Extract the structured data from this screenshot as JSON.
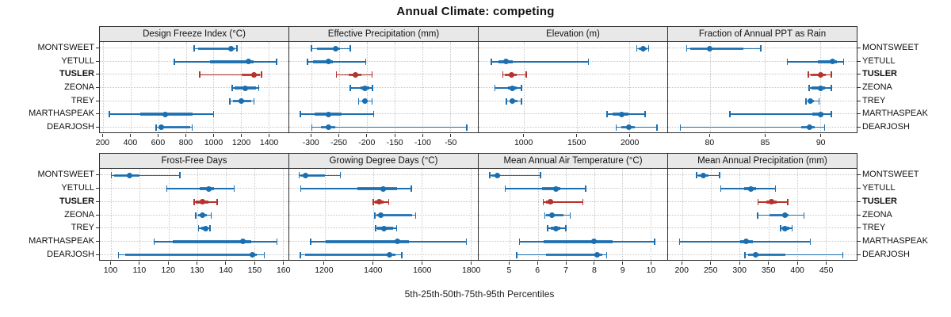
{
  "title": "Annual Climate: competing",
  "footer": "5th-25th-50th-75th-95th Percentiles",
  "sites": [
    "MONTSWEET",
    "YETULL",
    "TUSLER",
    "ZEONA",
    "TREY",
    "MARTHASPEAK",
    "DEARJOSH"
  ],
  "highlight_site": "TUSLER",
  "colors": {
    "series": "#1b6fb0",
    "highlight": "#b5332b",
    "panel_header_bg": "#e8e8e8",
    "border": "#2e2e2e",
    "grid": "#c7c7c7"
  },
  "chart_data": {
    "type": "dot-whisker-trellis",
    "percentiles": [
      5,
      25,
      50,
      75,
      95
    ],
    "legend_note": "whisker = 5th-95th, thick bar = 25th-75th, dot = median",
    "grid": "dotted",
    "panels": [
      {
        "title": "Design Freeze Index (°C)",
        "band": 0,
        "xlim": [
          175,
          1545
        ],
        "ticks": [
          200,
          400,
          600,
          800,
          1000,
          1200,
          1400
        ],
        "values": [
          [
            860,
            890,
            1130,
            1155,
            1170
          ],
          [
            715,
            975,
            1255,
            1290,
            1460
          ],
          [
            900,
            1205,
            1295,
            1335,
            1350
          ],
          [
            1135,
            1155,
            1230,
            1310,
            1330
          ],
          [
            1120,
            1140,
            1205,
            1275,
            1295
          ],
          [
            245,
            470,
            650,
            850,
            1000
          ],
          [
            585,
            600,
            622,
            833,
            847
          ]
        ]
      },
      {
        "title": "Effective Precipitation (mm)",
        "band": 0,
        "xlim": [
          -340,
          0
        ],
        "ticks": [
          -300,
          -250,
          -200,
          -150,
          -100,
          -50
        ],
        "values": [
          [
            -300,
            -290,
            -257,
            -249,
            -230
          ],
          [
            -307,
            -297,
            -270,
            -261,
            -202
          ],
          [
            -255,
            -233,
            -220,
            -210,
            -191
          ],
          [
            -230,
            -212,
            -203,
            -196,
            -190
          ],
          [
            -215,
            -208,
            -204,
            -198,
            -191
          ],
          [
            -320,
            -295,
            -270,
            -246,
            -188
          ],
          [
            -299,
            -283,
            -269,
            -257,
            -20
          ]
        ]
      },
      {
        "title": "Elevation (m)",
        "band": 0,
        "xlim": [
          570,
          2360
        ],
        "ticks": [
          1000,
          1500,
          2000
        ],
        "values": [
          [
            2070,
            2090,
            2133,
            2163,
            2185
          ],
          [
            690,
            758,
            832,
            895,
            1610
          ],
          [
            800,
            820,
            885,
            930,
            1020
          ],
          [
            725,
            845,
            890,
            930,
            977
          ],
          [
            832,
            860,
            890,
            935,
            977
          ],
          [
            1788,
            1838,
            1925,
            1988,
            2150
          ],
          [
            1875,
            1925,
            1995,
            2050,
            2263
          ]
        ]
      },
      {
        "title": "Fraction of Annual PPT as Rain",
        "band": 0,
        "xlim": [
          76.2,
          93.3
        ],
        "ticks": [
          80,
          85,
          90
        ],
        "values": [
          [
            77.9,
            78.2,
            80.0,
            83.0,
            84.6
          ],
          [
            87.0,
            89.8,
            91.1,
            91.5,
            92.1
          ],
          [
            88.9,
            89.1,
            90.0,
            90.5,
            91.0
          ],
          [
            89.0,
            89.2,
            90.0,
            90.4,
            91.0
          ],
          [
            88.7,
            88.9,
            89.1,
            89.4,
            89.9
          ],
          [
            81.8,
            89.3,
            90.0,
            90.3,
            91.0
          ],
          [
            77.3,
            88.3,
            89.0,
            89.5,
            90.4
          ]
        ]
      },
      {
        "title": "Frost-Free Days",
        "band": 1,
        "xlim": [
          96,
          162
        ],
        "ticks": [
          100,
          110,
          120,
          130,
          140,
          150,
          160
        ],
        "values": [
          [
            100,
            101,
            106.5,
            110,
            124
          ],
          [
            119.5,
            131,
            134,
            136,
            143
          ],
          [
            129,
            129.5,
            132,
            134,
            137
          ],
          [
            129.5,
            130.5,
            132,
            133.5,
            135
          ],
          [
            130.5,
            131.5,
            133,
            133.5,
            134.5
          ],
          [
            115,
            121.5,
            146,
            149,
            158
          ],
          [
            102.5,
            105,
            149.5,
            151,
            153.5
          ]
        ]
      },
      {
        "title": "Growing Degree Days (°C)",
        "band": 1,
        "xlim": [
          1055,
          1830
        ],
        "ticks": [
          1200,
          1400,
          1600,
          1800
        ],
        "values": [
          [
            1095,
            1100,
            1122,
            1200,
            1265
          ],
          [
            1102,
            1336,
            1441,
            1497,
            1556
          ],
          [
            1400,
            1406,
            1424,
            1442,
            1464
          ],
          [
            1406,
            1412,
            1432,
            1560,
            1574
          ],
          [
            1410,
            1416,
            1443,
            1481,
            1497
          ],
          [
            1143,
            1205,
            1500,
            1546,
            1782
          ],
          [
            1100,
            1120,
            1467,
            1492,
            1517
          ]
        ]
      },
      {
        "title": "Mean Annual Air Temperature (°C)",
        "band": 1,
        "xlim": [
          3.9,
          10.6
        ],
        "ticks": [
          5,
          6,
          7,
          8,
          9,
          10
        ],
        "values": [
          [
            4.3,
            4.35,
            4.55,
            4.65,
            6.1
          ],
          [
            4.85,
            6.15,
            6.65,
            6.8,
            7.7
          ],
          [
            6.2,
            6.3,
            6.45,
            6.55,
            7.6
          ],
          [
            6.25,
            6.3,
            6.5,
            6.9,
            7.15
          ],
          [
            6.35,
            6.45,
            6.65,
            6.8,
            7.0
          ],
          [
            5.35,
            6.2,
            8.0,
            8.65,
            10.15
          ],
          [
            5.25,
            6.3,
            8.1,
            8.3,
            8.45
          ]
        ]
      },
      {
        "title": "Mean Annual Precipitation (mm)",
        "band": 1,
        "xlim": [
          175,
          504
        ],
        "ticks": [
          200,
          250,
          300,
          350,
          400,
          450
        ],
        "values": [
          [
            225,
            228,
            237,
            245,
            265
          ],
          [
            267,
            308,
            320,
            328,
            362
          ],
          [
            332,
            346,
            356,
            365,
            384
          ],
          [
            331,
            352,
            379,
            385,
            412
          ],
          [
            371,
            374,
            379,
            386,
            391
          ],
          [
            195,
            301,
            311,
            323,
            423
          ],
          [
            309,
            315,
            328,
            380,
            480
          ]
        ]
      }
    ]
  }
}
